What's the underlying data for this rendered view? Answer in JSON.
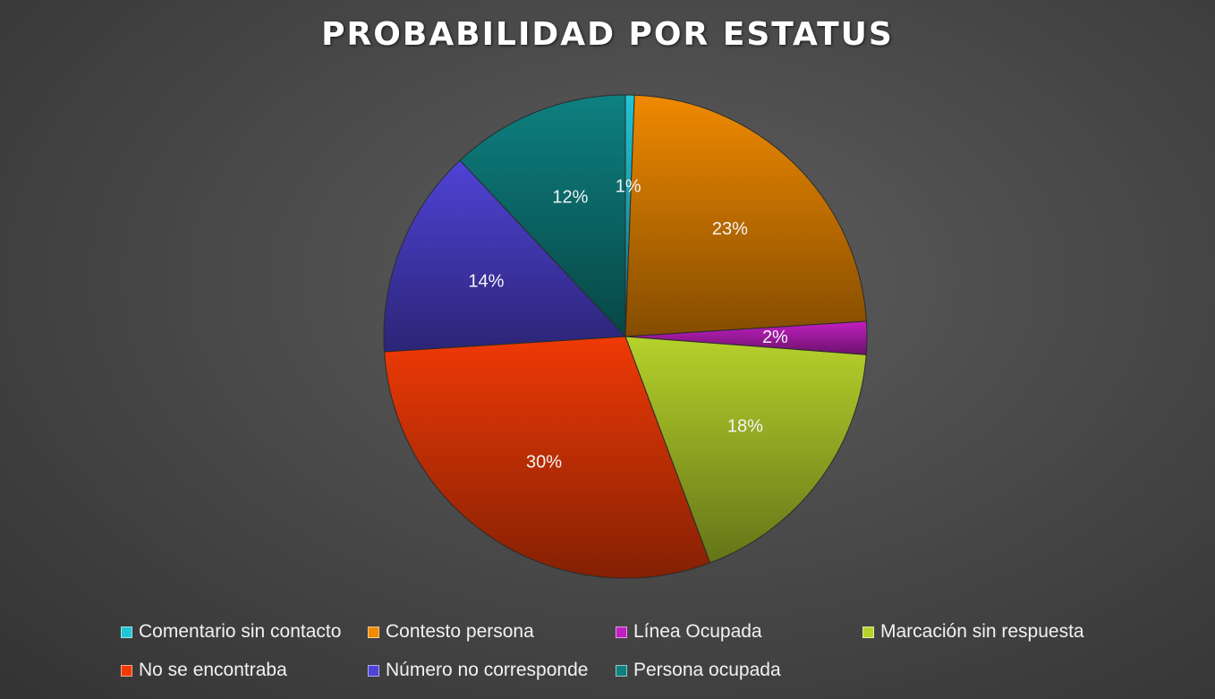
{
  "chart_data": {
    "type": "pie",
    "title": "PROBABILIDAD POR ESTATUS",
    "legend_position": "bottom",
    "slices": [
      {
        "label": "Comentario sin contacto",
        "value": 0.6,
        "display": "1%",
        "color": "#21c6d6"
      },
      {
        "label": "Contesto persona",
        "value": 23.4,
        "display": "23%",
        "color": "#f08a00"
      },
      {
        "label": "Línea Ocupada",
        "value": 2.2,
        "display": "2%",
        "color": "#c21fc2"
      },
      {
        "label": "Marcación sin respuesta",
        "value": 18.1,
        "display": "18%",
        "color": "#b6d22b"
      },
      {
        "label": "No se encontraba",
        "value": 29.7,
        "display": "30%",
        "color": "#f03a06"
      },
      {
        "label": "Número no corresponde",
        "value": 14.0,
        "display": "14%",
        "color": "#4f43d6"
      },
      {
        "label": "Persona ocupada",
        "value": 12.0,
        "display": "12%",
        "color": "#0e8080"
      }
    ]
  }
}
